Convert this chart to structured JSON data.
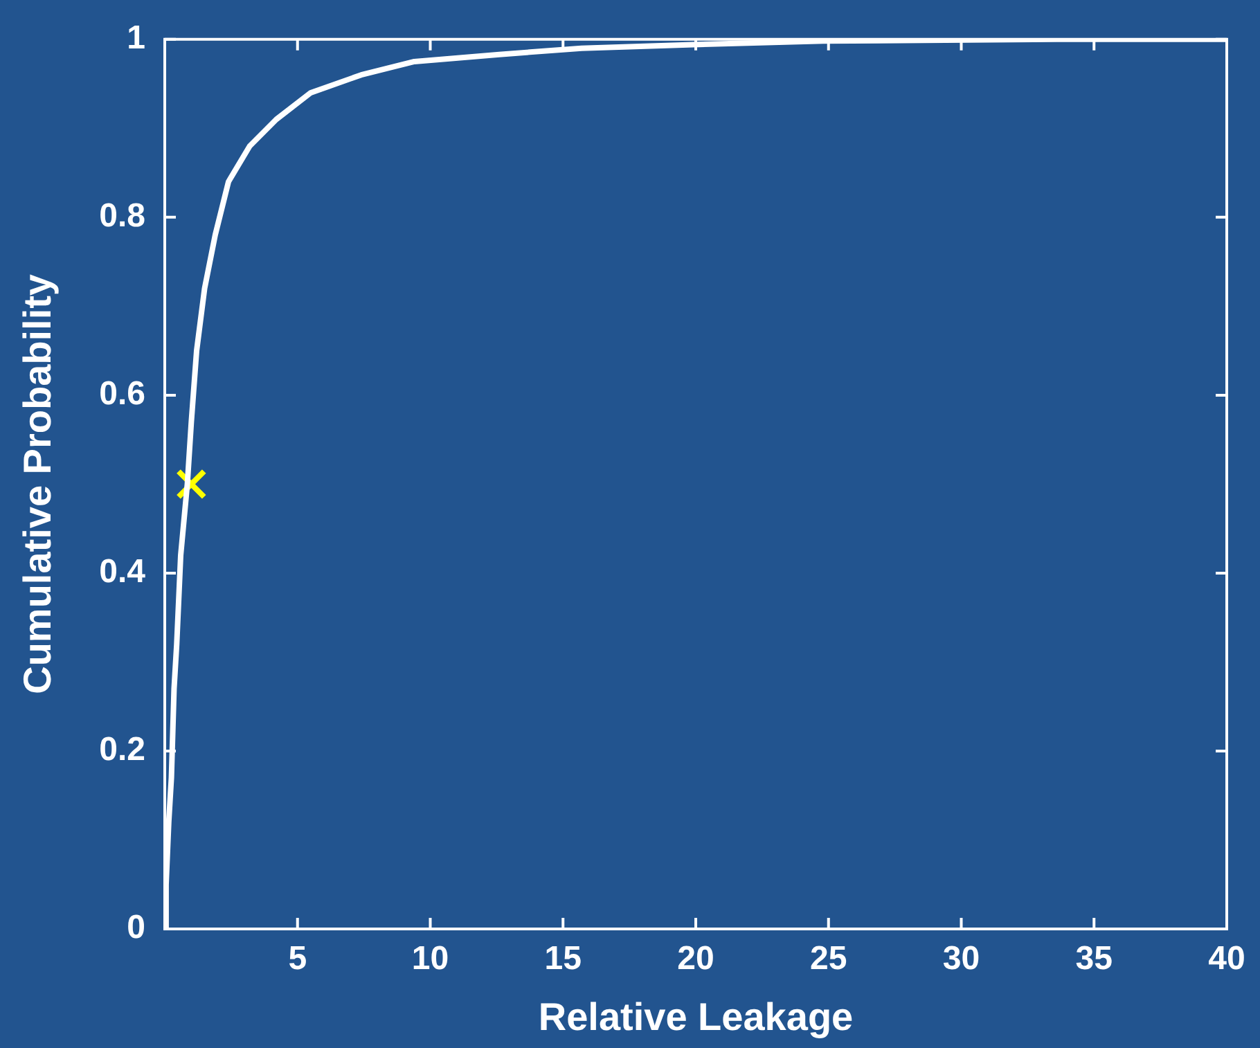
{
  "chart_data": {
    "type": "line",
    "xlabel": "Relative Leakage",
    "ylabel": "Cumulative Probability",
    "xlim": [
      0,
      40
    ],
    "ylim": [
      0,
      1
    ],
    "xticks": [
      5,
      10,
      15,
      20,
      25,
      30,
      35,
      40
    ],
    "yticks": [
      0,
      0.2,
      0.4,
      0.6,
      0.8,
      1
    ],
    "grid": false,
    "legend": false,
    "marker": "none",
    "line_style": "solid",
    "series": [
      {
        "color": "#ffffff",
        "x": [
          0.05,
          0.05,
          0.15,
          0.25,
          0.35,
          0.45,
          0.6,
          0.85,
          1.0,
          1.2,
          1.5,
          1.9,
          2.4,
          3.2,
          4.2,
          5.5,
          7.4,
          9.4,
          12.6,
          15.7,
          19.9,
          24.8,
          33.7,
          40
        ],
        "values": [
          0,
          0.05,
          0.12,
          0.17,
          0.27,
          0.32,
          0.42,
          0.5,
          0.57,
          0.65,
          0.72,
          0.78,
          0.84,
          0.88,
          0.91,
          0.94,
          0.96,
          0.975,
          0.983,
          0.99,
          0.994,
          0.998,
          1,
          1
        ]
      },
      {
        "type": "scatter",
        "marker": "cross",
        "color": "#ffff00",
        "x": [
          1.0
        ],
        "values": [
          0.5
        ]
      }
    ]
  }
}
